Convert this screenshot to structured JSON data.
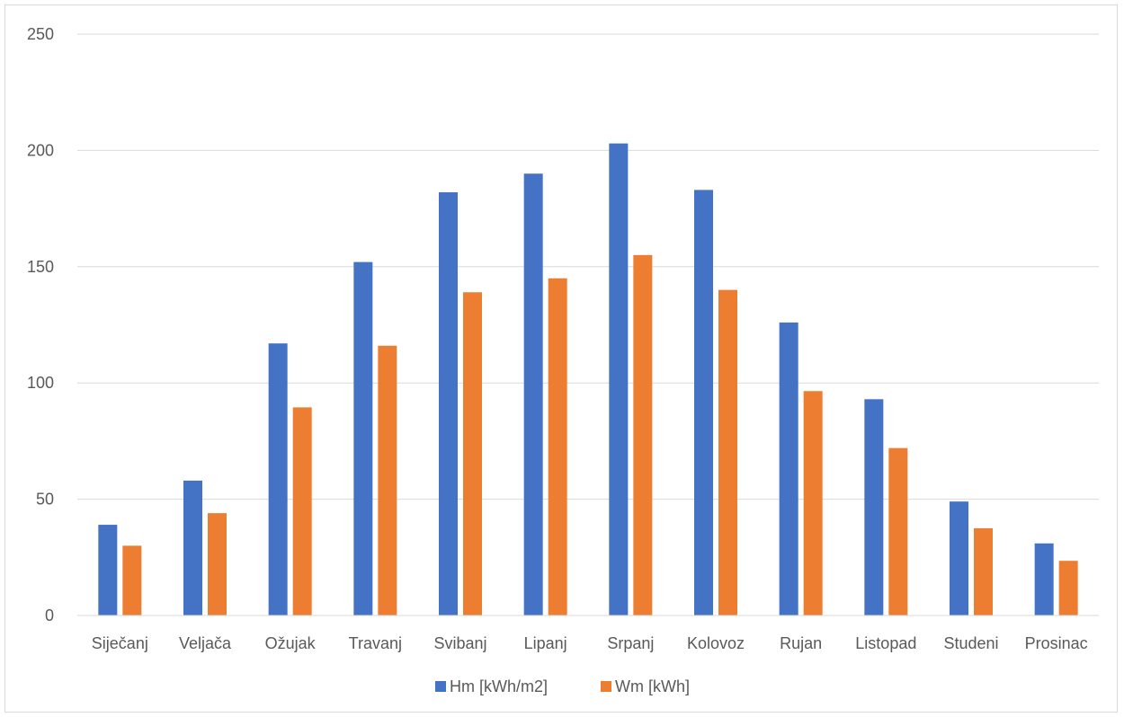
{
  "chart_data": {
    "type": "bar",
    "title": "",
    "xlabel": "",
    "ylabel": "",
    "categories": [
      "Siječanj",
      "Veljača",
      "Ožujak",
      "Travanj",
      "Svibanj",
      "Lipanj",
      "Srpanj",
      "Kolovoz",
      "Rujan",
      "Listopad",
      "Studeni",
      "Prosinac"
    ],
    "series": [
      {
        "name": "Hm [kWh/m2]",
        "color": "#4472c4",
        "values": [
          39,
          58,
          117,
          152,
          182,
          190,
          203,
          183,
          126,
          93,
          49,
          31
        ]
      },
      {
        "name": "Wm [kWh]",
        "color": "#ed7d31",
        "values": [
          30,
          44,
          89.5,
          116,
          139,
          145,
          155,
          140,
          96.5,
          72,
          37.5,
          23.5
        ]
      }
    ],
    "ylim": [
      0,
      250
    ],
    "yticks": [
      0,
      50,
      100,
      150,
      200,
      250
    ],
    "grid": true,
    "legend": "bottom"
  }
}
